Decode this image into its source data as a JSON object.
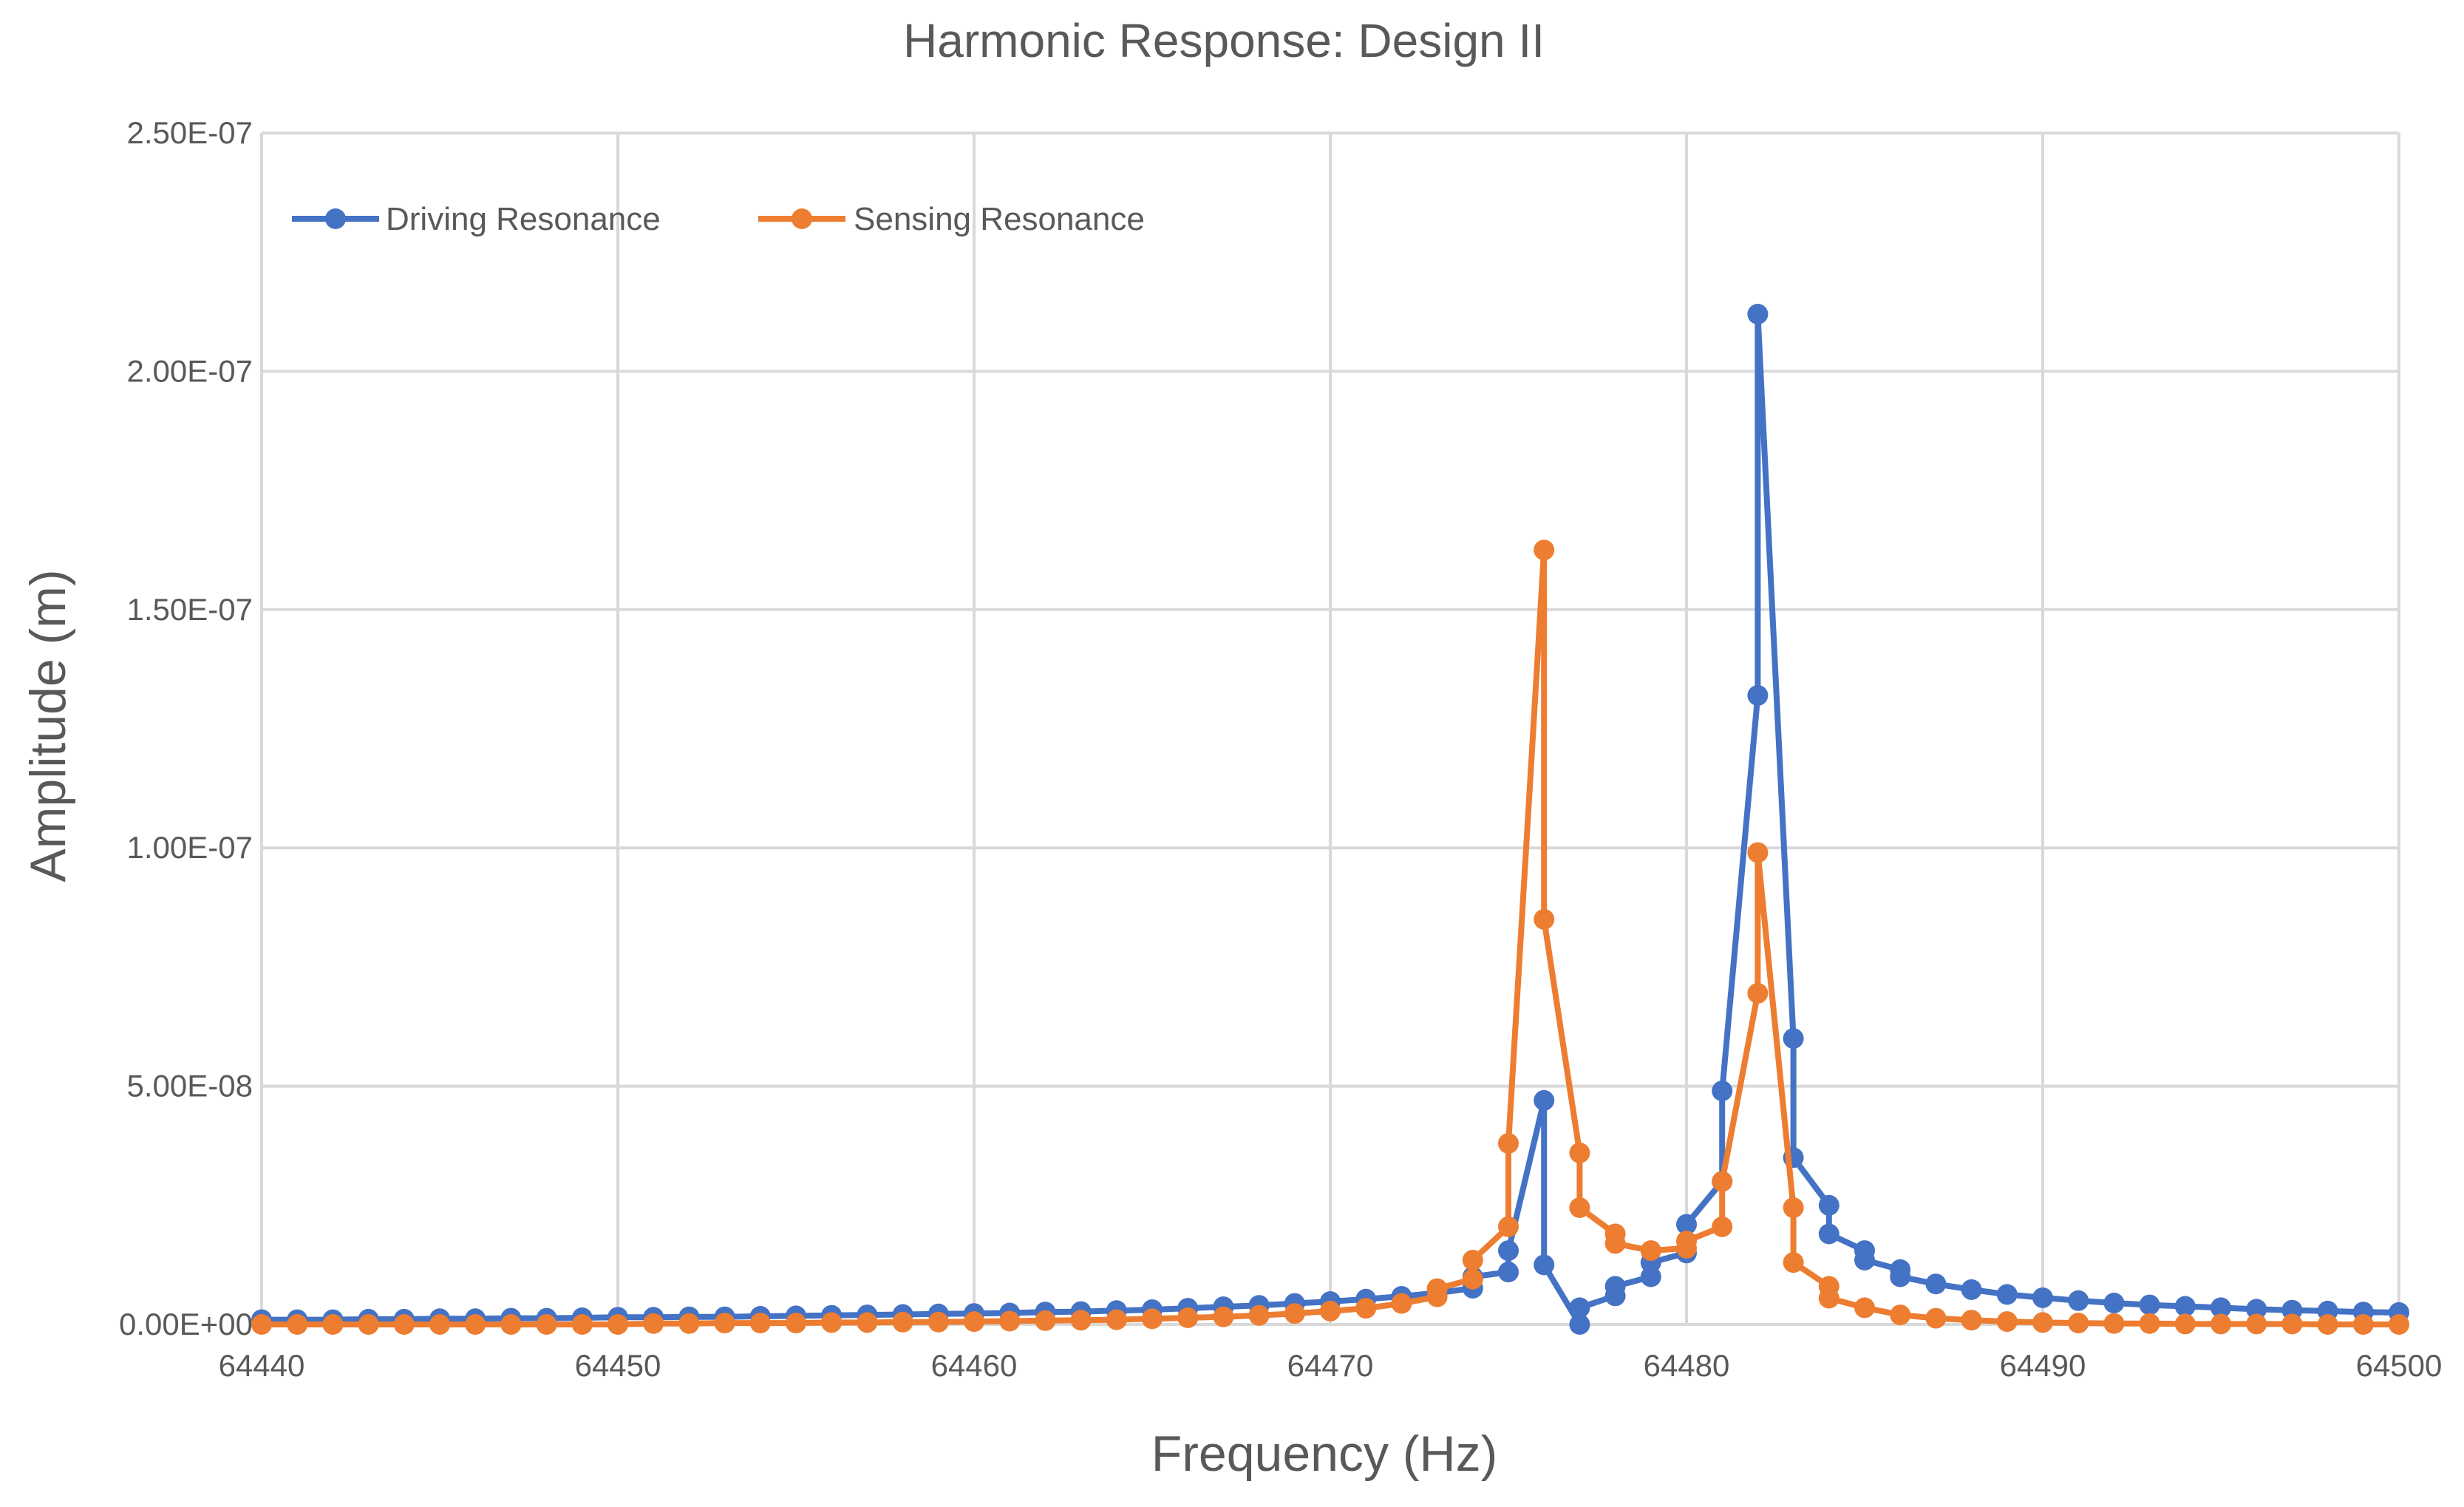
{
  "chart_data": {
    "type": "line",
    "title": "Harmonic Response:  Design II",
    "xlabel": "Frequency (Hz)",
    "ylabel": "Amplitude (m)",
    "xlim": [
      64440,
      64500
    ],
    "ylim": [
      0,
      2.5e-07
    ],
    "x_ticks": [
      64440,
      64450,
      64460,
      64470,
      64480,
      64490,
      64500
    ],
    "x_tick_labels": [
      "64440",
      "64450",
      "64460",
      "64470",
      "64480",
      "64490",
      "64500"
    ],
    "y_ticks": [
      0,
      5e-08,
      1e-07,
      1.5e-07,
      2e-07,
      2.5e-07
    ],
    "y_tick_labels": [
      "0.00E+00",
      "5.00E-08",
      "1.00E-07",
      "1.50E-07",
      "2.00E-07",
      "2.50E-07"
    ],
    "grid": true,
    "legend_position": "top-left",
    "series": [
      {
        "name": "Driving Resonance",
        "color": "#4472c4",
        "points": [
          [
            64440,
            1e-09
          ],
          [
            64441,
            1e-09
          ],
          [
            64442,
            1e-09
          ],
          [
            64443,
            1.1e-09
          ],
          [
            64444,
            1.1e-09
          ],
          [
            64445,
            1.2e-09
          ],
          [
            64446,
            1.2e-09
          ],
          [
            64447,
            1.3e-09
          ],
          [
            64448,
            1.3e-09
          ],
          [
            64449,
            1.4e-09
          ],
          [
            64450,
            1.5e-09
          ],
          [
            64451,
            1.5e-09
          ],
          [
            64452,
            1.6e-09
          ],
          [
            64453,
            1.6e-09
          ],
          [
            64454,
            1.7e-09
          ],
          [
            64455,
            1.8e-09
          ],
          [
            64456,
            1.9e-09
          ],
          [
            64457,
            2e-09
          ],
          [
            64458,
            2.1e-09
          ],
          [
            64459,
            2.2e-09
          ],
          [
            64460,
            2.3e-09
          ],
          [
            64461,
            2.4e-09
          ],
          [
            64462,
            2.6e-09
          ],
          [
            64463,
            2.7e-09
          ],
          [
            64464,
            2.9e-09
          ],
          [
            64465,
            3.1e-09
          ],
          [
            64466,
            3.4e-09
          ],
          [
            64467,
            3.7e-09
          ],
          [
            64468,
            4e-09
          ],
          [
            64469,
            4.4e-09
          ],
          [
            64470,
            4.8e-09
          ],
          [
            64471,
            5.3e-09
          ],
          [
            64472,
            5.9e-09
          ],
          [
            64473,
            6.6e-09
          ],
          [
            64474,
            7.6e-09
          ],
          [
            64474,
            1e-08
          ],
          [
            64475,
            1.1e-08
          ],
          [
            64475,
            1.55e-08
          ],
          [
            64476,
            4.7e-08
          ],
          [
            64476,
            1.25e-08
          ],
          [
            64477,
            0
          ],
          [
            64477,
            3.5e-09
          ],
          [
            64478,
            6e-09
          ],
          [
            64478,
            8e-09
          ],
          [
            64479,
            1e-08
          ],
          [
            64479,
            1.3e-08
          ],
          [
            64480,
            1.5e-08
          ],
          [
            64480,
            2.1e-08
          ],
          [
            64481,
            3e-08
          ],
          [
            64481,
            4.9e-08
          ],
          [
            64482,
            1.32e-07
          ],
          [
            64482,
            2.12e-07
          ],
          [
            64483,
            6e-08
          ],
          [
            64483,
            3.5e-08
          ],
          [
            64484,
            2.5e-08
          ],
          [
            64484,
            1.9e-08
          ],
          [
            64485,
            1.55e-08
          ],
          [
            64485,
            1.35e-08
          ],
          [
            64486,
            1.15e-08
          ],
          [
            64486,
            1e-08
          ],
          [
            64487,
            8.5e-09
          ],
          [
            64488,
            7.3e-09
          ],
          [
            64489,
            6.3e-09
          ],
          [
            64490,
            5.6e-09
          ],
          [
            64491,
            5e-09
          ],
          [
            64492,
            4.5e-09
          ],
          [
            64493,
            4.1e-09
          ],
          [
            64494,
            3.8e-09
          ],
          [
            64495,
            3.5e-09
          ],
          [
            64496,
            3.2e-09
          ],
          [
            64497,
            3e-09
          ],
          [
            64498,
            2.8e-09
          ],
          [
            64499,
            2.6e-09
          ],
          [
            64500,
            2.5e-09
          ]
        ]
      },
      {
        "name": "Sensing Resonance",
        "color": "#ed7d31",
        "points": [
          [
            64440,
            0
          ],
          [
            64441,
            0
          ],
          [
            64442,
            0
          ],
          [
            64443,
            0
          ],
          [
            64444,
            0
          ],
          [
            64445,
            0
          ],
          [
            64446,
            0
          ],
          [
            64447,
            0
          ],
          [
            64448,
            0
          ],
          [
            64449,
            0
          ],
          [
            64450,
            0
          ],
          [
            64451,
            2e-10
          ],
          [
            64452,
            2e-10
          ],
          [
            64453,
            3e-10
          ],
          [
            64454,
            3e-10
          ],
          [
            64455,
            3e-10
          ],
          [
            64456,
            4e-10
          ],
          [
            64457,
            4e-10
          ],
          [
            64458,
            5e-10
          ],
          [
            64459,
            5e-10
          ],
          [
            64460,
            6e-10
          ],
          [
            64461,
            7e-10
          ],
          [
            64462,
            8e-10
          ],
          [
            64463,
            9e-10
          ],
          [
            64464,
            1e-09
          ],
          [
            64465,
            1.2e-09
          ],
          [
            64466,
            1.4e-09
          ],
          [
            64467,
            1.6e-09
          ],
          [
            64468,
            1.9e-09
          ],
          [
            64469,
            2.3e-09
          ],
          [
            64470,
            2.8e-09
          ],
          [
            64471,
            3.4e-09
          ],
          [
            64472,
            4.4e-09
          ],
          [
            64473,
            5.8e-09
          ],
          [
            64473,
            7.5e-09
          ],
          [
            64474,
            9.5e-09
          ],
          [
            64474,
            1.35e-08
          ],
          [
            64475,
            2.05e-08
          ],
          [
            64475,
            3.8e-08
          ],
          [
            64476,
            1.625e-07
          ],
          [
            64476,
            8.5e-08
          ],
          [
            64477,
            3.6e-08
          ],
          [
            64477,
            2.45e-08
          ],
          [
            64478,
            1.9e-08
          ],
          [
            64478,
            1.7e-08
          ],
          [
            64479,
            1.55e-08
          ],
          [
            64480,
            1.6e-08
          ],
          [
            64480,
            1.75e-08
          ],
          [
            64481,
            2.05e-08
          ],
          [
            64481,
            3e-08
          ],
          [
            64482,
            6.95e-08
          ],
          [
            64482,
            9.9e-08
          ],
          [
            64483,
            2.45e-08
          ],
          [
            64483,
            1.3e-08
          ],
          [
            64484,
            8e-09
          ],
          [
            64484,
            5.5e-09
          ],
          [
            64485,
            3.5e-09
          ],
          [
            64486,
            2e-09
          ],
          [
            64487,
            1.3e-09
          ],
          [
            64488,
            9e-10
          ],
          [
            64489,
            6e-10
          ],
          [
            64490,
            4e-10
          ],
          [
            64491,
            3e-10
          ],
          [
            64492,
            2e-10
          ],
          [
            64493,
            2e-10
          ],
          [
            64494,
            1e-10
          ],
          [
            64495,
            1e-10
          ],
          [
            64496,
            1e-10
          ],
          [
            64497,
            1e-10
          ],
          [
            64498,
            0
          ],
          [
            64499,
            0
          ],
          [
            64500,
            0
          ]
        ]
      }
    ]
  }
}
